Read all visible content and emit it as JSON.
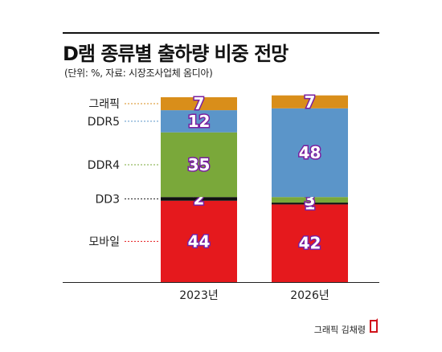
{
  "header": {
    "title": "D램 종류별 출하량 비중 전망",
    "subtitle": "(단위: %, 자료: 시장조사업체 옴디아)"
  },
  "credit": "그래픽 김채령",
  "colors": {
    "graphics": "#d98e1a",
    "ddr5": "#5b95c9",
    "ddr4": "#7aa83a",
    "dd3": "#111111",
    "mobile": "#e5191d",
    "label_outline": "#7a1fa0",
    "logo": "#d0121b"
  },
  "chart_data": {
    "type": "bar",
    "stacked": true,
    "categories": [
      "2023년",
      "2026년"
    ],
    "series": [
      {
        "name": "모바일",
        "key": "mobile",
        "values": [
          44,
          42
        ]
      },
      {
        "name": "DD3",
        "key": "dd3",
        "values": [
          2,
          1
        ]
      },
      {
        "name": "DDR4",
        "key": "ddr4",
        "values": [
          35,
          3
        ]
      },
      {
        "name": "DDR5",
        "key": "ddr5",
        "values": [
          12,
          48
        ]
      },
      {
        "name": "그래픽",
        "key": "graphics",
        "values": [
          7,
          7
        ]
      }
    ],
    "ylim": [
      0,
      100
    ],
    "legend": "left"
  }
}
